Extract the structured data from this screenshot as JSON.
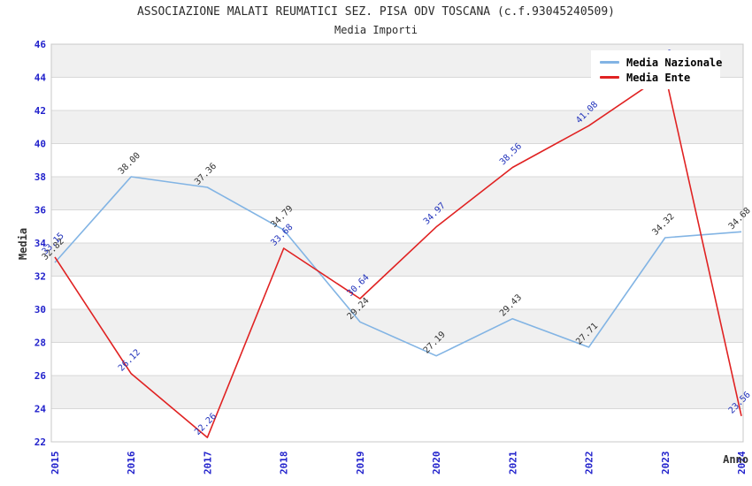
{
  "title": "ASSOCIAZIONE MALATI REUMATICI SEZ. PISA ODV TOSCANA (c.f.93045240509)",
  "subtitle": "Media Importi",
  "chart_data": {
    "type": "line",
    "x": [
      2015,
      2016,
      2017,
      2018,
      2019,
      2020,
      2021,
      2022,
      2023,
      2024
    ],
    "xlabel": "Anno",
    "ylabel": "Media",
    "ylim": [
      22,
      46
    ],
    "yticks": [
      22,
      24,
      26,
      28,
      30,
      32,
      34,
      36,
      38,
      40,
      42,
      44,
      46
    ],
    "grid": "horizontal alternating bands",
    "band_color": "#f0f0f0",
    "gridline_color": "#d8d8d8",
    "plot_border_color": "#c8c8c8",
    "axis_text_color": "#2222cc",
    "axis_title_color": "#333333",
    "legend_position": "top-right",
    "series": [
      {
        "name": "Media Nazionale",
        "color": "#82b4e4",
        "label_color": "#333333",
        "values": [
          32.82,
          38.0,
          37.36,
          34.79,
          29.24,
          27.19,
          29.43,
          27.71,
          34.32,
          34.68
        ]
      },
      {
        "name": "Media Ente",
        "color": "#e02222",
        "label_color": "#2233bb",
        "values": [
          33.15,
          26.12,
          22.26,
          33.68,
          30.64,
          34.97,
          38.56,
          41.08,
          44.2,
          23.56
        ]
      }
    ]
  }
}
